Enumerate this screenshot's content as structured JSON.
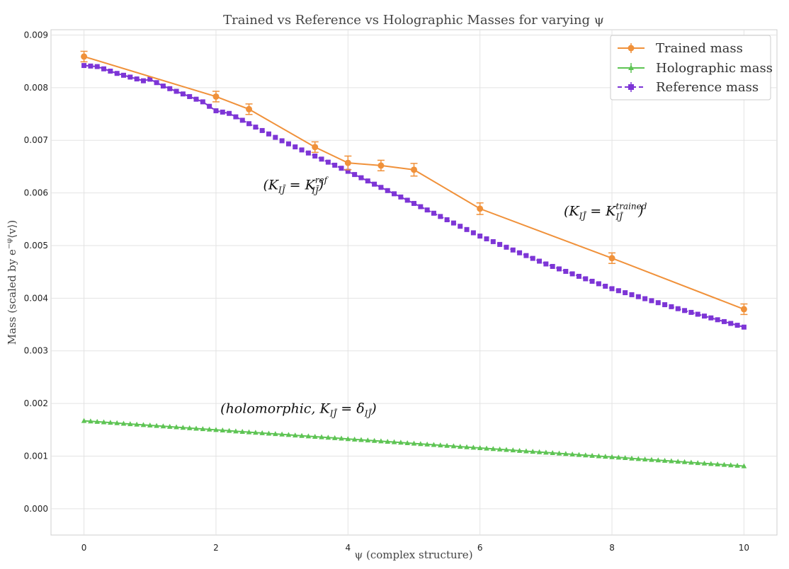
{
  "chart_data": {
    "type": "line",
    "title": "Trained vs Reference vs Holographic Masses for varying ψ",
    "xlabel": "ψ (complex structure)",
    "ylabel": "Mass (scaled by e",
    "ylabel_sup": "−φ",
    "ylabel_tail": "⟨v⟩)",
    "xlim": [
      -0.5,
      10.5
    ],
    "ylim": [
      -0.0005,
      0.0091
    ],
    "xticks": [
      0,
      2,
      4,
      6,
      8,
      10
    ],
    "xtick_labels": [
      "0",
      "2",
      "4",
      "6",
      "8",
      "10"
    ],
    "yticks": [
      0.0,
      0.001,
      0.002,
      0.003,
      0.004,
      0.005,
      0.006,
      0.007,
      0.008,
      0.009
    ],
    "ytick_labels": [
      "0.000",
      "0.001",
      "0.002",
      "0.003",
      "0.004",
      "0.005",
      "0.006",
      "0.007",
      "0.008",
      "0.009"
    ],
    "grid": true,
    "legend_position": "top-right",
    "series": [
      {
        "name": "Trained mass",
        "color": "#f0913a",
        "marker": "circle",
        "line": "solid",
        "x": [
          0,
          2,
          2.5,
          3.5,
          4,
          4.5,
          5,
          6,
          8,
          10
        ],
        "y": [
          0.00859,
          0.00783,
          0.00759,
          0.00687,
          0.00657,
          0.00652,
          0.00644,
          0.0057,
          0.00476,
          0.00379
        ],
        "err": [
          0.0001,
          0.0001,
          0.0001,
          0.0001,
          0.00013,
          0.0001,
          0.00012,
          0.00011,
          0.0001,
          0.0001
        ]
      },
      {
        "name": "Holographic mass",
        "color": "#5ec454",
        "marker": "triangle",
        "line": "solid",
        "x_start": 0,
        "x_end": 10,
        "n_points": 101,
        "y_start": 0.00167,
        "y_end": 0.00081
      },
      {
        "name": "Reference mass",
        "color": "#7d35d6",
        "marker": "square",
        "line": "dashed",
        "x_knots": [
          0,
          0.2,
          0.5,
          0.9,
          1.0,
          1.2,
          1.8,
          2.0,
          2.2,
          3.0,
          4.0,
          5.0,
          6.0,
          7.0,
          8.0,
          9.0,
          10.0
        ],
        "y_knots": [
          0.00842,
          0.0084,
          0.00827,
          0.00813,
          0.00816,
          0.00803,
          0.00773,
          0.00756,
          0.00751,
          0.00699,
          0.00641,
          0.0058,
          0.00518,
          0.00465,
          0.00418,
          0.0038,
          0.00345
        ]
      }
    ],
    "annotations": [
      {
        "main": "(K",
        "sub": "I",
        "mid": "J̄",
        "rest": " = K",
        "sup": "ref",
        "sub2": "IJ̄",
        "close": ")",
        "x": 3.2,
        "y": 0.00607
      },
      {
        "main": "(K",
        "sub": "I",
        "mid": "J̄",
        "rest": " = K",
        "sup": "trained",
        "sub2": "IJ̄",
        "close": ")",
        "x": 7.9,
        "y": 0.00557
      },
      {
        "text": "(holomorphic, K",
        "sub": "IJ̄",
        "rest": " = δ",
        "sub2": "IJ̄",
        "close": ")",
        "x": 3.25,
        "y": 0.00182
      }
    ]
  }
}
